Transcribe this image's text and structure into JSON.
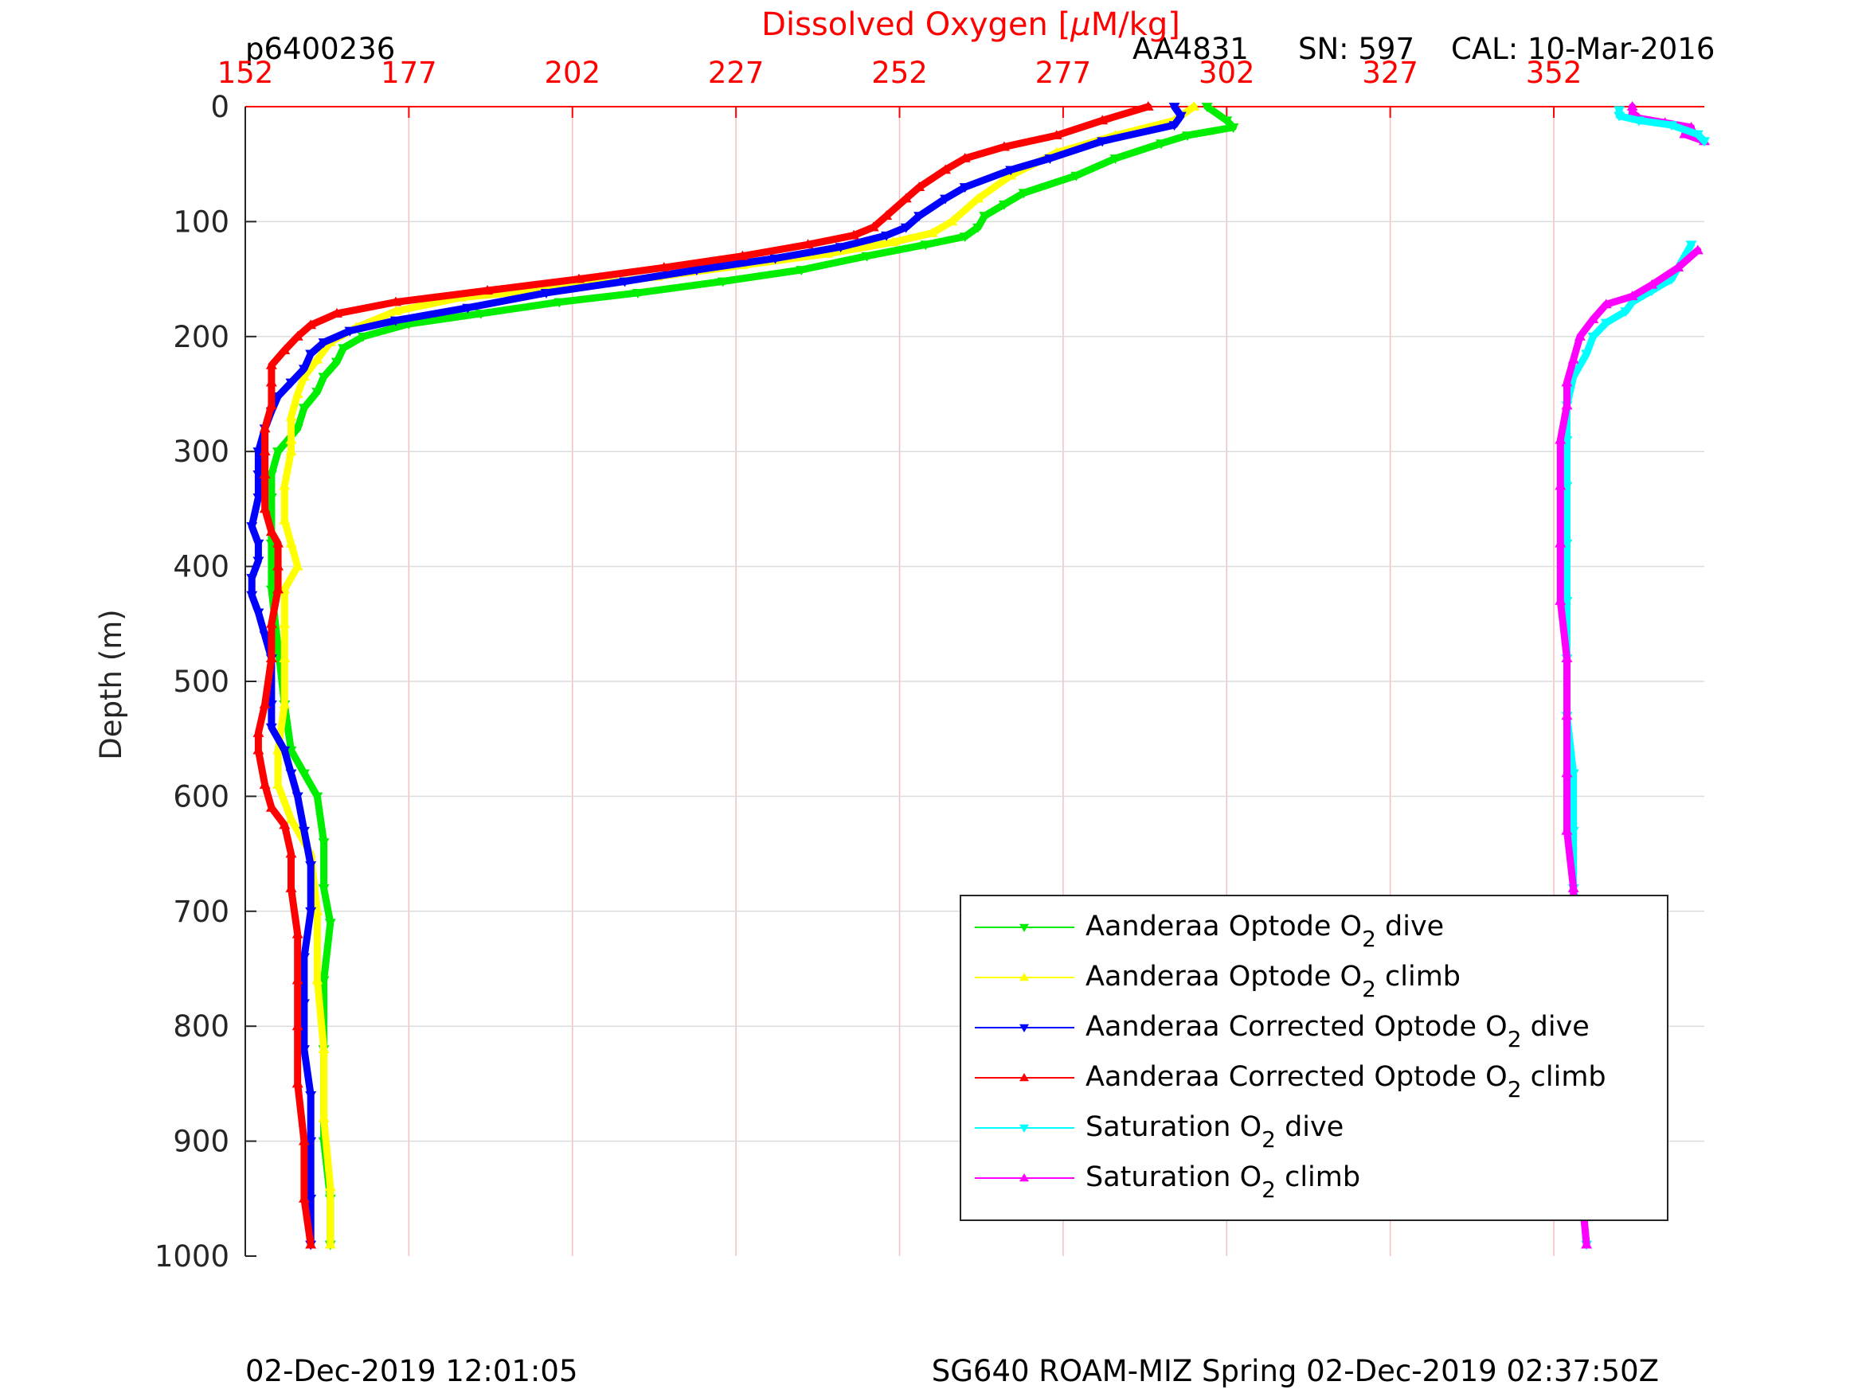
{
  "header": {
    "profile_id": "p6400236",
    "sensor": "AA4831",
    "serial": "SN: 597",
    "calibration": "CAL: 10-Mar-2016"
  },
  "footer": {
    "left": "02-Dec-2019 12:01:05",
    "right": "SG640 ROAM-MIZ Spring 02-Dec-2019 02:37:50Z"
  },
  "chart_data": {
    "type": "line",
    "title": "",
    "xlabel": "Dissolved Oxygen [μM/kg]",
    "xlabel_prefix": "Dissolved Oxygen [",
    "xlabel_mu": "μ",
    "xlabel_suffix": "M/kg]",
    "ylabel": "Depth (m)",
    "xlim": [
      152,
      375
    ],
    "ylim": [
      1000,
      0
    ],
    "y_reversed": true,
    "x_axis_position": "top",
    "x_ticks": [
      "152",
      "177",
      "202",
      "227",
      "252",
      "277",
      "302",
      "327",
      "352"
    ],
    "y_ticks": [
      "0",
      "100",
      "200",
      "300",
      "400",
      "500",
      "600",
      "700",
      "800",
      "900",
      "1000"
    ],
    "grid": true,
    "legend_position": "bottom-right",
    "colors": {
      "axis_x": "#ff0000",
      "grid_x": "#f2c0c0",
      "grid_y": "#dcdcdc"
    },
    "series": [
      {
        "name": "Aanderaa Optode O2 dive",
        "label_pre": "Aanderaa Optode O",
        "label_sub": "2",
        "label_post": " dive",
        "color": "#00ee00",
        "marker": "triangle-down",
        "points": [
          [
            299,
            0
          ],
          [
            302,
            12
          ],
          [
            303,
            18
          ],
          [
            296,
            25
          ],
          [
            292,
            32
          ],
          [
            285,
            45
          ],
          [
            279,
            60
          ],
          [
            271,
            75
          ],
          [
            268,
            85
          ],
          [
            265,
            95
          ],
          [
            264,
            105
          ],
          [
            262,
            113
          ],
          [
            256,
            120
          ],
          [
            247,
            130
          ],
          [
            237,
            142
          ],
          [
            225,
            152
          ],
          [
            212,
            162
          ],
          [
            200,
            170
          ],
          [
            188,
            180
          ],
          [
            177,
            189
          ],
          [
            170,
            200
          ],
          [
            167,
            210
          ],
          [
            166,
            222
          ],
          [
            164,
            235
          ],
          [
            163,
            248
          ],
          [
            161,
            262
          ],
          [
            160,
            280
          ],
          [
            157,
            300
          ],
          [
            156,
            320
          ],
          [
            156,
            340
          ],
          [
            156,
            380
          ],
          [
            156,
            420
          ],
          [
            157,
            470
          ],
          [
            158,
            520
          ],
          [
            159,
            560
          ],
          [
            161,
            580
          ],
          [
            163,
            600
          ],
          [
            164,
            640
          ],
          [
            164,
            680
          ],
          [
            165,
            710
          ],
          [
            164,
            760
          ],
          [
            164,
            820
          ],
          [
            164,
            900
          ],
          [
            165,
            950
          ],
          [
            165,
            990
          ]
        ]
      },
      {
        "name": "Aanderaa Optode O2 climb",
        "label_pre": "Aanderaa Optode O",
        "label_sub": "2",
        "label_post": " climb",
        "color": "#ffff00",
        "marker": "triangle-up",
        "points": [
          [
            297,
            0
          ],
          [
            294,
            12
          ],
          [
            285,
            25
          ],
          [
            276,
            40
          ],
          [
            269,
            60
          ],
          [
            264,
            80
          ],
          [
            260,
            100
          ],
          [
            257,
            110
          ],
          [
            251,
            118
          ],
          [
            241,
            128
          ],
          [
            228,
            138
          ],
          [
            215,
            148
          ],
          [
            200,
            158
          ],
          [
            185,
            166
          ],
          [
            175,
            178
          ],
          [
            169,
            192
          ],
          [
            165,
            205
          ],
          [
            163,
            220
          ],
          [
            161,
            235
          ],
          [
            160,
            250
          ],
          [
            159,
            270
          ],
          [
            159,
            290
          ],
          [
            159,
            300
          ],
          [
            158,
            330
          ],
          [
            158,
            360
          ],
          [
            159,
            380
          ],
          [
            160,
            400
          ],
          [
            158,
            420
          ],
          [
            158,
            450
          ],
          [
            158,
            480
          ],
          [
            158,
            520
          ],
          [
            157,
            560
          ],
          [
            157,
            590
          ],
          [
            159,
            620
          ],
          [
            162,
            650
          ],
          [
            163,
            700
          ],
          [
            163,
            760
          ],
          [
            164,
            820
          ],
          [
            164,
            880
          ],
          [
            165,
            940
          ],
          [
            165,
            990
          ]
        ]
      },
      {
        "name": "Aanderaa Corrected Optode O2 dive",
        "label_pre": "Aanderaa Corrected Optode O",
        "label_sub": "2",
        "label_post": " dive",
        "color": "#0000ff",
        "marker": "triangle-down",
        "points": [
          [
            294,
            0
          ],
          [
            295,
            8
          ],
          [
            294,
            16
          ],
          [
            283,
            30
          ],
          [
            275,
            45
          ],
          [
            269,
            55
          ],
          [
            262,
            70
          ],
          [
            259,
            80
          ],
          [
            255,
            95
          ],
          [
            253,
            105
          ],
          [
            250,
            112
          ],
          [
            243,
            122
          ],
          [
            233,
            132
          ],
          [
            221,
            142
          ],
          [
            210,
            152
          ],
          [
            198,
            162
          ],
          [
            186,
            175
          ],
          [
            175,
            186
          ],
          [
            168,
            195
          ],
          [
            164,
            205
          ],
          [
            162,
            215
          ],
          [
            161,
            228
          ],
          [
            159,
            240
          ],
          [
            157,
            252
          ],
          [
            156,
            265
          ],
          [
            155,
            280
          ],
          [
            154,
            300
          ],
          [
            154,
            320
          ],
          [
            154,
            340
          ],
          [
            153,
            365
          ],
          [
            154,
            380
          ],
          [
            154,
            395
          ],
          [
            153,
            410
          ],
          [
            153,
            425
          ],
          [
            154,
            440
          ],
          [
            155,
            460
          ],
          [
            156,
            480
          ],
          [
            156,
            520
          ],
          [
            156,
            540
          ],
          [
            158,
            560
          ],
          [
            159,
            580
          ],
          [
            160,
            600
          ],
          [
            161,
            630
          ],
          [
            162,
            660
          ],
          [
            162,
            700
          ],
          [
            161,
            740
          ],
          [
            161,
            780
          ],
          [
            161,
            820
          ],
          [
            162,
            860
          ],
          [
            162,
            900
          ],
          [
            162,
            950
          ],
          [
            162,
            990
          ]
        ]
      },
      {
        "name": "Aanderaa Corrected Optode O2 climb",
        "label_pre": "Aanderaa Corrected Optode O",
        "label_sub": "2",
        "label_post": " climb",
        "color": "#ff0000",
        "marker": "triangle-up",
        "points": [
          [
            290,
            0
          ],
          [
            283,
            12
          ],
          [
            276,
            25
          ],
          [
            268,
            35
          ],
          [
            262,
            45
          ],
          [
            259,
            55
          ],
          [
            255,
            70
          ],
          [
            253,
            80
          ],
          [
            250,
            95
          ],
          [
            248,
            105
          ],
          [
            245,
            112
          ],
          [
            238,
            120
          ],
          [
            228,
            130
          ],
          [
            216,
            140
          ],
          [
            203,
            150
          ],
          [
            189,
            160
          ],
          [
            175,
            170
          ],
          [
            166,
            180
          ],
          [
            162,
            190
          ],
          [
            160,
            200
          ],
          [
            158,
            212
          ],
          [
            156,
            225
          ],
          [
            156,
            240
          ],
          [
            156,
            260
          ],
          [
            155,
            280
          ],
          [
            155,
            300
          ],
          [
            155,
            320
          ],
          [
            155,
            350
          ],
          [
            156,
            370
          ],
          [
            157,
            380
          ],
          [
            157,
            400
          ],
          [
            157,
            420
          ],
          [
            156,
            450
          ],
          [
            156,
            480
          ],
          [
            155,
            520
          ],
          [
            154,
            545
          ],
          [
            154,
            560
          ],
          [
            155,
            590
          ],
          [
            156,
            610
          ],
          [
            158,
            625
          ],
          [
            159,
            650
          ],
          [
            159,
            680
          ],
          [
            160,
            720
          ],
          [
            160,
            760
          ],
          [
            160,
            800
          ],
          [
            160,
            850
          ],
          [
            161,
            900
          ],
          [
            161,
            950
          ],
          [
            162,
            990
          ]
        ]
      },
      {
        "name": "Saturation O2 dive",
        "label_pre": "Saturation O",
        "label_sub": "2",
        "label_post": " dive",
        "color": "#00ffff",
        "marker": "triangle-down",
        "points": [
          [
            373,
            120
          ],
          [
            370,
            150
          ],
          [
            367,
            160
          ],
          [
            364,
            170
          ],
          [
            363,
            178
          ],
          [
            360,
            188
          ],
          [
            358,
            200
          ],
          [
            357,
            215
          ],
          [
            355,
            235
          ],
          [
            354,
            260
          ],
          [
            354,
            290
          ],
          [
            354,
            330
          ],
          [
            354,
            380
          ],
          [
            354,
            430
          ],
          [
            354,
            480
          ],
          [
            354,
            530
          ],
          [
            355,
            580
          ],
          [
            355,
            630
          ],
          [
            355,
            680
          ],
          [
            356,
            730
          ],
          [
            356,
            780
          ],
          [
            356,
            830
          ],
          [
            356,
            880
          ],
          [
            356,
            930
          ],
          [
            357,
            990
          ]
        ]
      },
      {
        "name": "Saturation O2 climb",
        "label_pre": "Saturation O",
        "label_sub": "2",
        "label_post": " climb",
        "color": "#ff00ff",
        "marker": "triangle-up",
        "points": [
          [
            374,
            125
          ],
          [
            371,
            140
          ],
          [
            367,
            155
          ],
          [
            364,
            165
          ],
          [
            360,
            172
          ],
          [
            358,
            185
          ],
          [
            356,
            200
          ],
          [
            355,
            220
          ],
          [
            354,
            240
          ],
          [
            354,
            260
          ],
          [
            353,
            290
          ],
          [
            353,
            330
          ],
          [
            353,
            380
          ],
          [
            353,
            430
          ],
          [
            354,
            480
          ],
          [
            354,
            530
          ],
          [
            354,
            580
          ],
          [
            354,
            630
          ],
          [
            355,
            680
          ],
          [
            355,
            730
          ],
          [
            355,
            780
          ],
          [
            356,
            830
          ],
          [
            356,
            880
          ],
          [
            356,
            930
          ],
          [
            357,
            990
          ]
        ]
      },
      {
        "name": "Saturation O2 climb (surface)",
        "label_pre": "",
        "label_sub": "",
        "label_post": "",
        "color": "#ff00ff",
        "marker": "triangle-up",
        "in_legend": false,
        "points": [
          [
            364,
            0
          ],
          [
            364,
            5
          ],
          [
            365,
            10
          ],
          [
            369,
            14
          ],
          [
            373,
            18
          ],
          [
            372,
            24
          ],
          [
            375,
            30
          ]
        ]
      },
      {
        "name": "Saturation O2 dive (surface)",
        "label_pre": "",
        "label_sub": "",
        "label_post": "",
        "color": "#00ffff",
        "marker": "triangle-down",
        "in_legend": false,
        "points": [
          [
            362,
            3
          ],
          [
            362,
            8
          ],
          [
            365,
            12
          ],
          [
            370,
            16
          ],
          [
            374,
            24
          ],
          [
            375,
            30
          ]
        ]
      }
    ]
  }
}
